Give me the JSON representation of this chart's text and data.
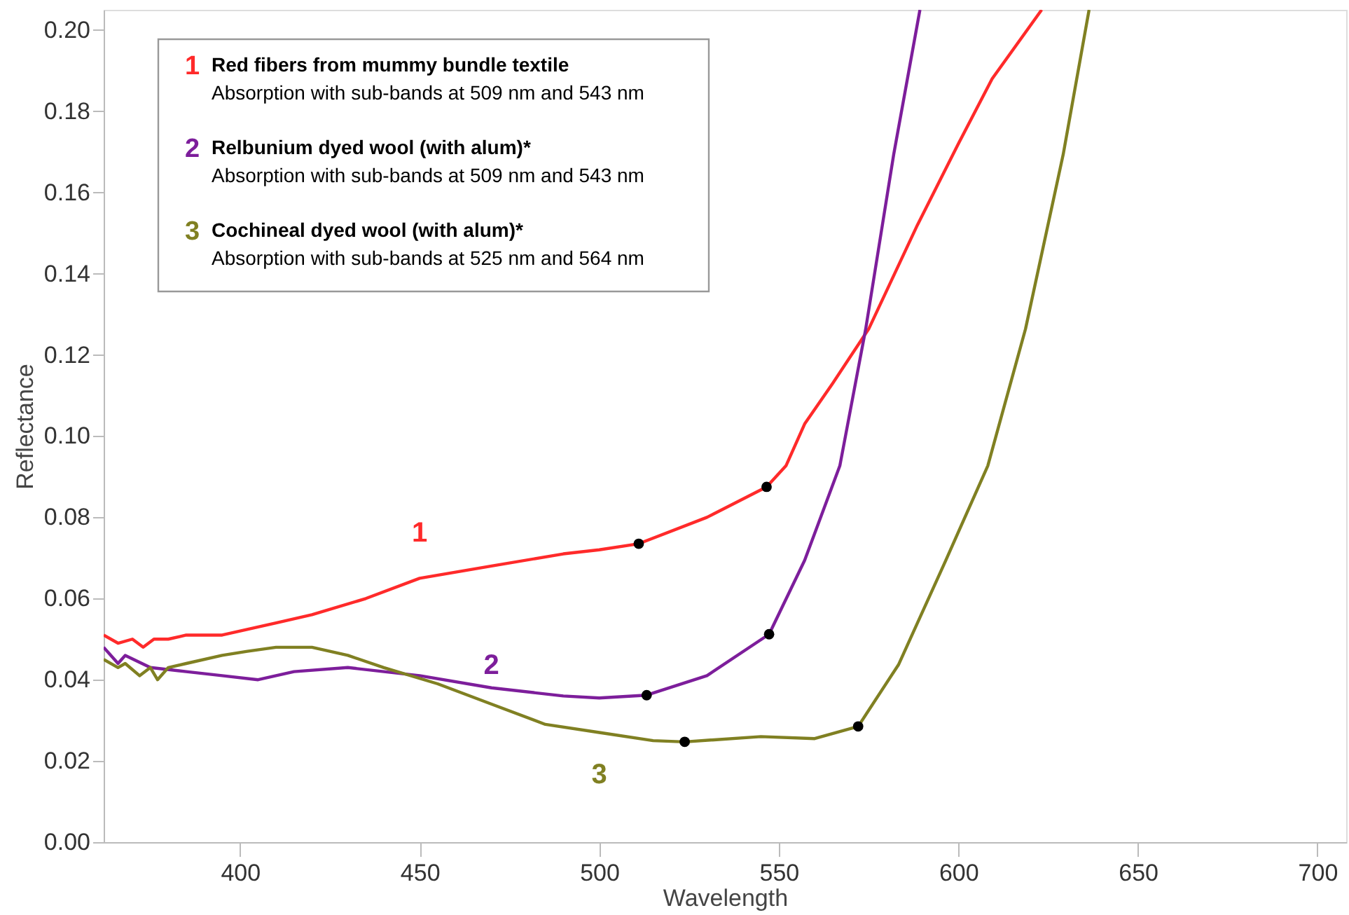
{
  "chart_data": {
    "type": "line",
    "xlabel": "Wavelength",
    "ylabel": "Reflectance",
    "xlim": [
      362,
      708
    ],
    "xticks": [
      400,
      450,
      500,
      550,
      600,
      650,
      700
    ],
    "ylim": [
      0,
      0.205
    ],
    "yticks": [
      {
        "value": 0,
        "label": "0.00"
      },
      0.02,
      0.04,
      0.06,
      0.08,
      {
        "value": 0.1,
        "label": "0.10"
      },
      0.12,
      0.14,
      0.16,
      0.18,
      {
        "value": 0.2,
        "label": "0.20"
      }
    ],
    "grid": false,
    "line_style": "solid",
    "series": [
      {
        "name": "1",
        "color": "#ff2a2a",
        "x": [
          362,
          366,
          370,
          373,
          376,
          380,
          385,
          390,
          395,
          400,
          410,
          420,
          435,
          450,
          470,
          490,
          500,
          511,
          530,
          546.6,
          552,
          557.2,
          565,
          575.1,
          588.6,
          600,
          609.4,
          623.2
        ],
        "values": [
          0.051,
          0.049,
          0.05,
          0.048,
          0.05,
          0.05,
          0.051,
          0.051,
          0.051,
          0.052,
          0.054,
          0.056,
          0.06,
          0.065,
          0.068,
          0.071,
          0.072,
          0.0735,
          0.08,
          0.0875,
          0.0927,
          0.103,
          0.113,
          0.1265,
          0.152,
          0.172,
          0.188,
          0.205
        ]
      },
      {
        "name": "2",
        "color": "#7d1e9b",
        "x": [
          362,
          366,
          368,
          375,
          385,
          395,
          405,
          415,
          430,
          450,
          470,
          490,
          500,
          513.2,
          530,
          547.3,
          557.2,
          567,
          574.2,
          582,
          589.3
        ],
        "values": [
          0.048,
          0.044,
          0.046,
          0.043,
          0.042,
          0.041,
          0.04,
          0.042,
          0.043,
          0.041,
          0.038,
          0.036,
          0.0355,
          0.0362,
          0.041,
          0.0512,
          0.0694,
          0.0927,
          0.1264,
          0.1694,
          0.205
        ]
      },
      {
        "name": "3",
        "color": "#808022",
        "x": [
          362,
          366,
          368,
          372,
          375,
          377,
          380,
          385,
          395,
          402,
          410,
          420,
          430,
          440,
          455,
          470,
          485,
          500,
          515,
          523.8,
          545,
          560,
          572.1,
          583.4,
          596.5,
          608.2,
          618.7,
          629.2,
          636.4
        ],
        "values": [
          0.045,
          0.043,
          0.044,
          0.041,
          0.043,
          0.04,
          0.043,
          0.044,
          0.046,
          0.047,
          0.048,
          0.048,
          0.046,
          0.043,
          0.039,
          0.034,
          0.029,
          0.027,
          0.025,
          0.0247,
          0.026,
          0.0255,
          0.0285,
          0.0438,
          0.0694,
          0.0927,
          0.1264,
          0.1694,
          0.205
        ]
      },
      {
        "type": "scatter",
        "marker": "circle",
        "color": "#000000",
        "x": [
          511,
          546.6,
          513.2,
          547.3,
          523.8,
          572.1
        ],
        "values": [
          0.0735,
          0.0875,
          0.0362,
          0.0512,
          0.0247,
          0.0285
        ]
      }
    ],
    "annotations": [
      "Red fibers from mummy bundle textile",
      "Absorption with sub-bands at 509 nm and 543 nm",
      "Relbunium dyed wool (with alum)*",
      "Absorption with sub-bands at 509 nm and 543 nm",
      "Cochineal dyed wool (with alum)*",
      "Absorption with sub-bands at 525 nm and 564 nm"
    ]
  }
}
